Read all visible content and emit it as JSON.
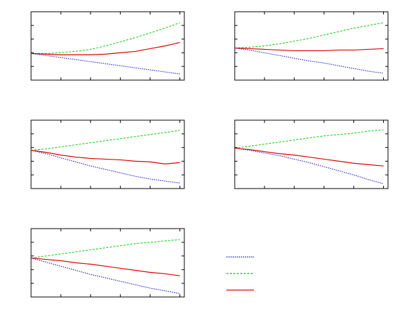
{
  "chart_data": [
    {
      "type": "line",
      "x": [
        0,
        1,
        2,
        3,
        4,
        5,
        6,
        7,
        8,
        9,
        10
      ],
      "xlim": [
        0,
        10.3
      ],
      "ylim": [
        0,
        10
      ],
      "xticks": [
        0,
        2,
        4,
        6,
        8,
        10
      ],
      "yticks": [
        0,
        2,
        4,
        6,
        8,
        10
      ],
      "series": [
        {
          "color": "#0000cc",
          "dash": "dotted",
          "values": [
            3.9,
            3.6,
            3.3,
            3.0,
            2.7,
            2.4,
            2.1,
            1.8,
            1.5,
            1.2,
            0.9
          ]
        },
        {
          "color": "#00cc00",
          "dash": "dashed",
          "values": [
            3.9,
            3.9,
            4.0,
            4.2,
            4.5,
            5.0,
            5.6,
            6.2,
            6.9,
            7.6,
            8.4
          ]
        },
        {
          "color": "#dd0000",
          "dash": "solid",
          "values": [
            3.9,
            3.8,
            3.7,
            3.7,
            3.7,
            3.8,
            4.0,
            4.2,
            4.6,
            5.0,
            5.5
          ]
        }
      ]
    },
    {
      "type": "line",
      "x": [
        0,
        1,
        2,
        3,
        4,
        5,
        6,
        7,
        8,
        9,
        10
      ],
      "xlim": [
        0,
        10.3
      ],
      "ylim": [
        0,
        10
      ],
      "xticks": [
        0,
        2,
        4,
        6,
        8,
        10
      ],
      "yticks": [
        0,
        2,
        4,
        6,
        8,
        10
      ],
      "series": [
        {
          "color": "#0000cc",
          "dash": "dotted",
          "values": [
            4.7,
            4.4,
            4.0,
            3.6,
            3.2,
            2.8,
            2.5,
            2.1,
            1.7,
            1.3,
            1.0
          ]
        },
        {
          "color": "#00cc00",
          "dash": "dashed",
          "values": [
            4.7,
            4.8,
            5.0,
            5.3,
            5.7,
            6.1,
            6.6,
            7.1,
            7.6,
            8.0,
            8.4
          ]
        },
        {
          "color": "#dd0000",
          "dash": "solid",
          "values": [
            4.7,
            4.6,
            4.5,
            4.4,
            4.3,
            4.3,
            4.3,
            4.4,
            4.4,
            4.5,
            4.6
          ]
        }
      ]
    },
    {
      "type": "line",
      "x": [
        0,
        1,
        2,
        3,
        4,
        5,
        6,
        7,
        8,
        9,
        10
      ],
      "xlim": [
        0,
        10.3
      ],
      "ylim": [
        0,
        10
      ],
      "xticks": [
        0,
        2,
        4,
        6,
        8,
        10
      ],
      "yticks": [
        0,
        2,
        4,
        6,
        8,
        10
      ],
      "series": [
        {
          "color": "#0000cc",
          "dash": "dotted",
          "values": [
            5.6,
            5.1,
            4.5,
            3.9,
            3.3,
            2.8,
            2.3,
            1.8,
            1.4,
            1.1,
            0.8
          ]
        },
        {
          "color": "#00cc00",
          "dash": "dashed",
          "values": [
            5.6,
            5.8,
            6.1,
            6.4,
            6.7,
            7.0,
            7.3,
            7.6,
            7.9,
            8.2,
            8.5
          ]
        },
        {
          "color": "#dd0000",
          "dash": "solid",
          "values": [
            5.6,
            5.3,
            4.9,
            4.6,
            4.4,
            4.3,
            4.2,
            4.0,
            3.9,
            3.6,
            3.8
          ]
        }
      ]
    },
    {
      "type": "line",
      "x": [
        0,
        1,
        2,
        3,
        4,
        5,
        6,
        7,
        8,
        9,
        10
      ],
      "xlim": [
        0,
        10.3
      ],
      "ylim": [
        0,
        10
      ],
      "xticks": [
        0,
        2,
        4,
        6,
        8,
        10
      ],
      "yticks": [
        0,
        2,
        4,
        6,
        8,
        10
      ],
      "series": [
        {
          "color": "#0000cc",
          "dash": "dotted",
          "values": [
            5.9,
            5.6,
            5.2,
            4.8,
            4.3,
            3.8,
            3.2,
            2.6,
            2.0,
            1.3,
            0.7
          ]
        },
        {
          "color": "#00cc00",
          "dash": "dashed",
          "values": [
            5.9,
            6.2,
            6.5,
            6.8,
            7.1,
            7.4,
            7.7,
            7.9,
            8.1,
            8.4,
            8.6
          ]
        },
        {
          "color": "#dd0000",
          "dash": "solid",
          "values": [
            5.9,
            5.7,
            5.4,
            5.1,
            4.9,
            4.6,
            4.3,
            4.0,
            3.7,
            3.5,
            3.3
          ]
        }
      ]
    },
    {
      "type": "line",
      "x": [
        0,
        1,
        2,
        3,
        4,
        5,
        6,
        7,
        8,
        9,
        10
      ],
      "xlim": [
        0,
        10.3
      ],
      "ylim": [
        0,
        10
      ],
      "xticks": [
        0,
        2,
        4,
        6,
        8,
        10
      ],
      "yticks": [
        0,
        2,
        4,
        6,
        8,
        10
      ],
      "series": [
        {
          "color": "#0000cc",
          "dash": "dotted",
          "values": [
            5.7,
            5.1,
            4.5,
            3.9,
            3.3,
            2.8,
            2.3,
            1.8,
            1.3,
            0.9,
            0.5
          ]
        },
        {
          "color": "#00cc00",
          "dash": "dashed",
          "values": [
            5.7,
            6.0,
            6.3,
            6.6,
            6.9,
            7.2,
            7.5,
            7.8,
            8.0,
            8.2,
            8.4
          ]
        },
        {
          "color": "#dd0000",
          "dash": "solid",
          "values": [
            5.7,
            5.5,
            5.3,
            5.0,
            4.8,
            4.5,
            4.2,
            3.9,
            3.6,
            3.4,
            3.1
          ]
        }
      ]
    }
  ]
}
